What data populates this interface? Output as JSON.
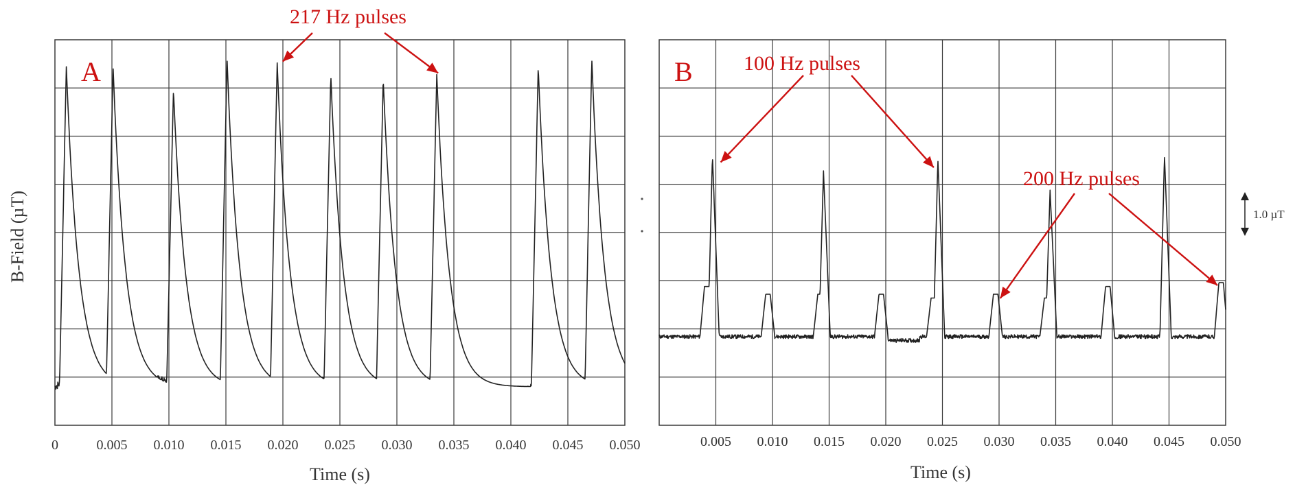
{
  "figure": {
    "ylabel": "B-Field (µT)",
    "scale_bar_label": "1.0 µT",
    "colors": {
      "trace": "#222222",
      "grid": "#3a3a3a",
      "annotation": "#cc1111",
      "text": "#333333"
    }
  },
  "chart_data": [
    {
      "type": "line",
      "panel_label": "A",
      "xlabel": "Time (s)",
      "ylabel": "B-Field (µT)",
      "xlim": [
        0,
        0.05
      ],
      "grid": true,
      "x_ticks": [
        "0",
        "0.005",
        "0.010",
        "0.015",
        "0.020",
        "0.025",
        "0.030",
        "0.035",
        "0.040",
        "0.045",
        "0.050"
      ],
      "annotations": [
        {
          "text": "217 Hz pulses",
          "targets": [
            0.0195,
            0.0335
          ]
        }
      ],
      "series": [
        {
          "pulse_times": [
            0.001,
            0.0051,
            0.0104,
            0.0151,
            0.0195,
            0.0242,
            0.0288,
            0.0335,
            0.0424,
            0.0471
          ],
          "peak_levels": [
            0.93,
            0.93,
            0.87,
            0.95,
            0.94,
            0.91,
            0.9,
            0.91,
            0.93,
            0.95
          ]
        }
      ]
    },
    {
      "type": "line",
      "panel_label": "B",
      "xlabel": "Time (s)",
      "xlim": [
        0,
        0.05
      ],
      "grid": true,
      "x_ticks": [
        "0.005",
        "0.010",
        "0.015",
        "0.020",
        "0.025",
        "0.030",
        "0.035",
        "0.040",
        "0.045",
        "0.050"
      ],
      "annotations": [
        {
          "text": "100 Hz pulses",
          "targets": [
            0.0047,
            0.0246
          ]
        },
        {
          "text": "200 Hz pulses",
          "targets": [
            0.0295,
            0.0494
          ]
        }
      ],
      "series": [
        {
          "large_pulse_times": [
            0.0047,
            0.0145,
            0.0246,
            0.0345,
            0.0446
          ],
          "large_pulse_levels": [
            0.7,
            0.66,
            0.69,
            0.61,
            0.7
          ],
          "small_pulse_times": [
            0.004,
            0.0094,
            0.014,
            0.0194,
            0.024,
            0.0295,
            0.034,
            0.0394,
            0.0494
          ],
          "small_pulse_levels": [
            0.36,
            0.34,
            0.34,
            0.34,
            0.33,
            0.34,
            0.33,
            0.36,
            0.37
          ]
        }
      ]
    }
  ]
}
